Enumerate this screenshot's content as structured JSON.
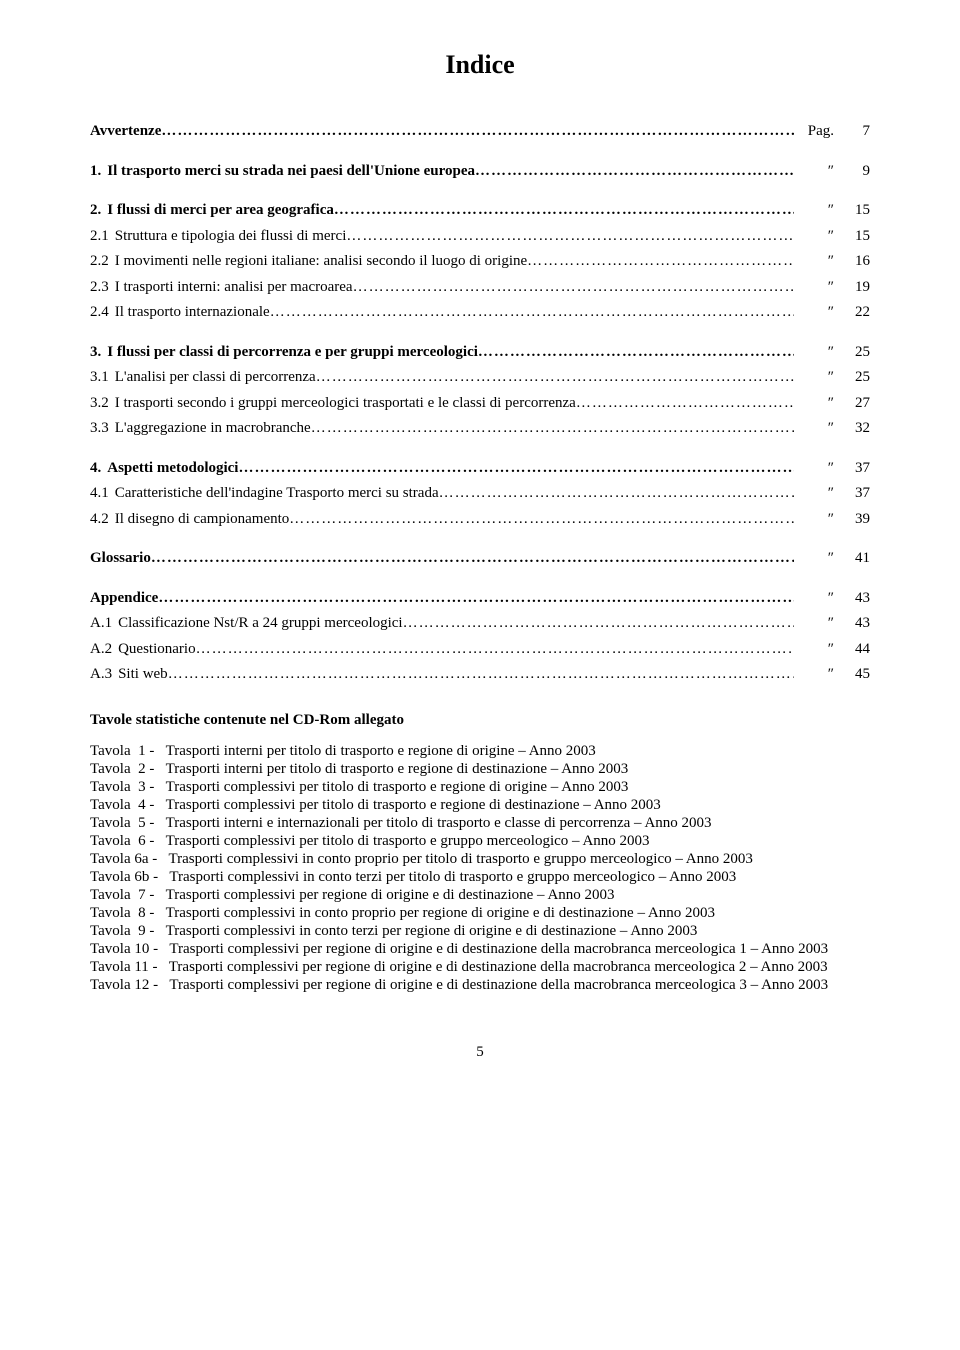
{
  "colors": {
    "background": "#ffffff",
    "text": "#000000"
  },
  "typography": {
    "family": "Times New Roman",
    "title_size": 26,
    "body_size": 15
  },
  "title": "Indice",
  "pag_label": "Pag.",
  "ditto": "″",
  "toc": [
    {
      "num": "",
      "text": "Avvertenze",
      "bold": true,
      "mark": "Pag.",
      "page": "7"
    },
    {
      "gap": true
    },
    {
      "num": "1.",
      "text": "Il trasporto merci su strada nei paesi dell'Unione europea",
      "bold": true,
      "mark": "″",
      "page": "9"
    },
    {
      "gap": true
    },
    {
      "num": "2.",
      "text": "I flussi di merci per area geografica",
      "bold": true,
      "mark": "″",
      "page": "15"
    },
    {
      "num": "2.1",
      "text": "Struttura e tipologia dei flussi di merci",
      "mark": "″",
      "page": "15"
    },
    {
      "num": "2.2",
      "text": "I movimenti nelle regioni italiane: analisi secondo il luogo di origine",
      "mark": "″",
      "page": "16"
    },
    {
      "num": "2.3",
      "text": "I trasporti interni: analisi per macroarea",
      "mark": "″",
      "page": "19"
    },
    {
      "num": "2.4",
      "text": "Il trasporto internazionale",
      "mark": "″",
      "page": "22"
    },
    {
      "gap": true
    },
    {
      "num": "3.",
      "text": "I flussi per classi di percorrenza e per gruppi merceologici",
      "bold": true,
      "mark": "″",
      "page": "25"
    },
    {
      "num": "3.1",
      "text": "L'analisi per classi di percorrenza",
      "mark": "″",
      "page": "25"
    },
    {
      "num": "3.2",
      "text": "I trasporti secondo i gruppi merceologici trasportati e le classi di percorrenza",
      "mark": "″",
      "page": "27"
    },
    {
      "num": "3.3",
      "text": "L'aggregazione in macrobranche",
      "mark": "″",
      "page": "32"
    },
    {
      "gap": true
    },
    {
      "num": "4.",
      "text": "Aspetti metodologici",
      "bold": true,
      "mark": "″",
      "page": "37"
    },
    {
      "num": "4.1",
      "text": "Caratteristiche dell'indagine Trasporto merci su strada",
      "mark": "″",
      "page": "37"
    },
    {
      "num": "4.2",
      "text": "Il disegno di campionamento",
      "mark": "″",
      "page": "39"
    },
    {
      "gap": true
    },
    {
      "num": "",
      "text": "Glossario",
      "bold": true,
      "mark": "″",
      "page": "41"
    },
    {
      "gap": true
    },
    {
      "num": "",
      "text": "Appendice",
      "bold": true,
      "mark": "″",
      "page": "43"
    },
    {
      "num": "A.1",
      "text": "Classificazione Nst/R a 24 gruppi merceologici",
      "mark": "″",
      "page": "43"
    },
    {
      "num": "A.2",
      "text": "Questionario",
      "mark": "″",
      "page": "44"
    },
    {
      "num": "A.3",
      "text": "Siti web",
      "mark": "″",
      "page": "45"
    }
  ],
  "tavole_title": "Tavole statistiche contenute nel CD-Rom allegato",
  "tavole": [
    {
      "id": "Tavola  1",
      "desc": "Trasporti interni per titolo di trasporto e regione di origine – Anno 2003"
    },
    {
      "id": "Tavola  2",
      "desc": "Trasporti interni per titolo di trasporto e regione di destinazione – Anno 2003"
    },
    {
      "id": "Tavola  3",
      "desc": "Trasporti complessivi per titolo di trasporto e regione di origine – Anno 2003"
    },
    {
      "id": "Tavola  4",
      "desc": "Trasporti complessivi per titolo di trasporto e regione di destinazione – Anno 2003"
    },
    {
      "id": "Tavola  5",
      "desc": "Trasporti interni e internazionali per titolo di trasporto e classe di percorrenza – Anno 2003"
    },
    {
      "id": "Tavola  6",
      "desc": "Trasporti complessivi per titolo di trasporto e gruppo merceologico – Anno 2003"
    },
    {
      "id": "Tavola 6a",
      "desc": "Trasporti complessivi in conto proprio per titolo di trasporto e gruppo merceologico – Anno 2003"
    },
    {
      "id": "Tavola 6b",
      "desc": "Trasporti complessivi in conto terzi per titolo di trasporto e gruppo merceologico – Anno 2003"
    },
    {
      "id": "Tavola  7",
      "desc": "Trasporti complessivi per regione di origine e di destinazione – Anno 2003"
    },
    {
      "id": "Tavola  8",
      "desc": "Trasporti complessivi in conto proprio per regione di origine e di destinazione – Anno 2003"
    },
    {
      "id": "Tavola  9",
      "desc": "Trasporti complessivi in conto terzi per regione di origine e di destinazione – Anno 2003"
    },
    {
      "id": "Tavola 10",
      "desc": "Trasporti complessivi per regione di origine e di destinazione della macrobranca merceologica 1 – Anno 2003"
    },
    {
      "id": "Tavola 11",
      "desc": "Trasporti complessivi per regione di origine e di destinazione della macrobranca merceologica 2 – Anno 2003"
    },
    {
      "id": "Tavola 12",
      "desc": "Trasporti complessivi per regione di origine e di destinazione della macrobranca merceologica 3 – Anno 2003"
    }
  ],
  "footer": "5"
}
